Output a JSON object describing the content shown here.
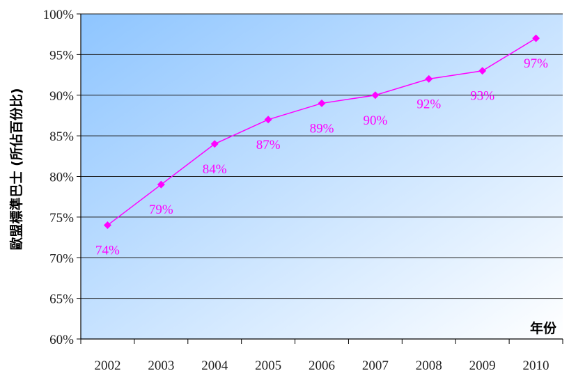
{
  "chart_data": {
    "type": "line",
    "title": "",
    "xlabel": "年份",
    "ylabel": "歐盟標準巴士 (所佔百份比)",
    "categories": [
      "2002",
      "2003",
      "2004",
      "2005",
      "2006",
      "2007",
      "2008",
      "2009",
      "2010"
    ],
    "series": [
      {
        "values": [
          74,
          79,
          84,
          87,
          89,
          90,
          92,
          93,
          97
        ],
        "labels": [
          "74%",
          "79%",
          "84%",
          "87%",
          "89%",
          "90%",
          "92%",
          "93%",
          "97%"
        ],
        "color": "#ff00ff",
        "marker": "diamond"
      }
    ],
    "ylim": [
      60,
      100
    ],
    "ytick_labels": [
      "60%",
      "65%",
      "70%",
      "75%",
      "80%",
      "85%",
      "90%",
      "95%",
      "100%"
    ],
    "grid": true,
    "legend": "none",
    "background_gradient": [
      "#8ec5ff",
      "#ffffff"
    ]
  }
}
